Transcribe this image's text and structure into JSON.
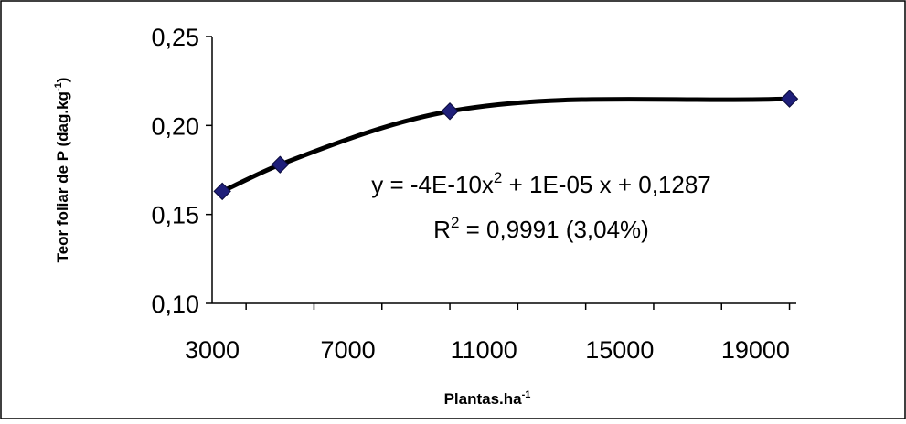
{
  "chart_data": {
    "type": "scatter",
    "xlabel": "Plantas.ha",
    "xlabel_sup": "-1",
    "ylabel": "Teor foliar de P (dag.kg",
    "ylabel_sup": "-1",
    "ylabel_close": ")",
    "xlim": [
      3000,
      19000
    ],
    "ylim": [
      0.1,
      0.25
    ],
    "x_ticks": [
      3000,
      7000,
      11000,
      15000,
      19000
    ],
    "x_tick_labels": [
      "3000",
      "7000",
      "11000",
      "15000",
      "19000"
    ],
    "y_ticks": [
      0.1,
      0.15,
      0.2,
      0.25
    ],
    "y_tick_labels": [
      "0,10",
      "0,15",
      "0,20",
      "0,25"
    ],
    "grid": false,
    "legend": "none",
    "series": [
      {
        "marker": "diamond",
        "color": "#1f1f7a",
        "points": [
          {
            "x": 3300,
            "y": 0.163
          },
          {
            "x": 5000,
            "y": 0.178
          },
          {
            "x": 10000,
            "y": 0.208
          },
          {
            "x": 20000,
            "y": 0.215
          }
        ]
      }
    ],
    "trendline": {
      "type": "polynomial",
      "coefficients": {
        "a": -4e-10,
        "b": 1e-05,
        "c": 0.1287
      },
      "color": "#000000",
      "x_range": [
        3300,
        20000
      ],
      "equation_prefix": "y = -4E-10x",
      "equation_sup": "2",
      "equation_suffix": " + 1E-05 x + 0,1287",
      "r2_prefix": "R",
      "r2_sup": "2",
      "r2_suffix": " = 0,9991 (3,04%)"
    }
  }
}
